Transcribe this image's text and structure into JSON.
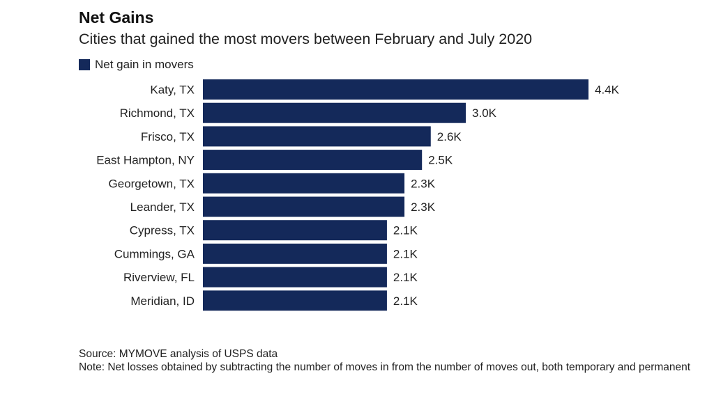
{
  "colors": {
    "bar": "#14295a"
  },
  "chart_data": {
    "type": "bar",
    "orientation": "horizontal",
    "title": "Net Gains",
    "subtitle": "Cities that gained the most movers between February and July 2020",
    "legend": {
      "label": "Net gain in movers",
      "position": "top-left"
    },
    "categories": [
      "Katy, TX",
      "Richmond, TX",
      "Frisco, TX",
      "East Hampton, NY",
      "Georgetown, TX",
      "Leander, TX",
      "Cypress, TX",
      "Cummings, GA",
      "Riverview, FL",
      "Meridian, ID"
    ],
    "values": [
      4400,
      3000,
      2600,
      2500,
      2300,
      2300,
      2100,
      2100,
      2100,
      2100
    ],
    "value_labels": [
      "4.4K",
      "3.0K",
      "2.6K",
      "2.5K",
      "2.3K",
      "2.3K",
      "2.1K",
      "2.1K",
      "2.1K",
      "2.1K"
    ],
    "xlim": [
      0,
      4400
    ],
    "grid": false
  },
  "footer": {
    "source": "Source: MYMOVE analysis of USPS data",
    "note": "Note: Net losses obtained by subtracting the number of moves in from the number of moves out, both temporary and permanent"
  }
}
